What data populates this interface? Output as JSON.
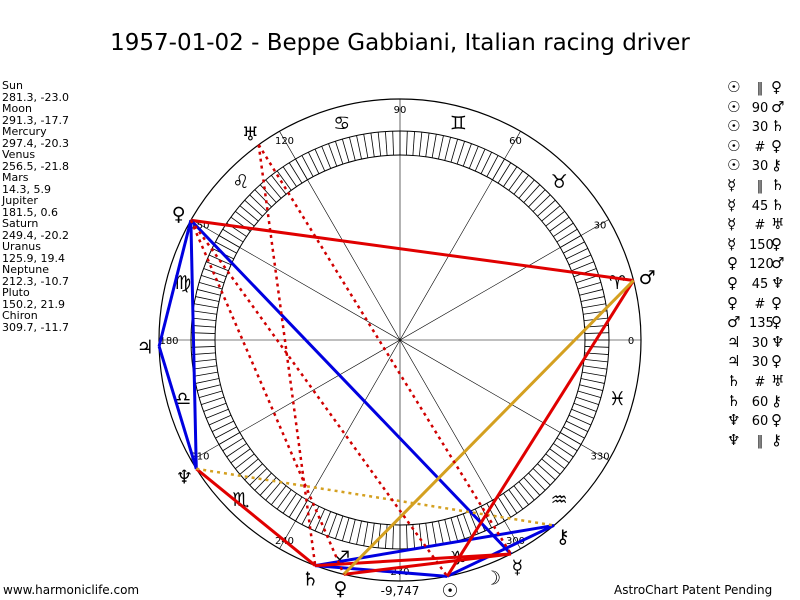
{
  "title": "1957-01-02 - Beppe Gabbiani, Italian racing driver",
  "planets": [
    {
      "name": "Sun",
      "coords": "281.3, -23.0"
    },
    {
      "name": "Moon",
      "coords": "291.3, -17.7"
    },
    {
      "name": "Mercury",
      "coords": "297.4, -20.3"
    },
    {
      "name": "Venus",
      "coords": "256.5, -21.8"
    },
    {
      "name": "Mars",
      "coords": "14.3, 5.9"
    },
    {
      "name": "Jupiter",
      "coords": "181.5, 0.6"
    },
    {
      "name": "Saturn",
      "coords": "249.4, -20.2"
    },
    {
      "name": "Uranus",
      "coords": "125.9, 19.4"
    },
    {
      "name": "Neptune",
      "coords": "212.3, -10.7"
    },
    {
      "name": "Pluto",
      "coords": "150.2, 21.9"
    },
    {
      "name": "Chiron",
      "coords": "309.7, -11.7"
    }
  ],
  "aspects_list": [
    {
      "p1": "☉",
      "sym": "‖",
      "p2": "♀"
    },
    {
      "p1": "☉",
      "sym": "90",
      "p2": "♂"
    },
    {
      "p1": "☉",
      "sym": "30",
      "p2": "♄"
    },
    {
      "p1": "☉",
      "sym": "#",
      "p2": "♀"
    },
    {
      "p1": "☉",
      "sym": "30",
      "p2": "⚷"
    },
    {
      "p1": "☿",
      "sym": "‖",
      "p2": "♄"
    },
    {
      "p1": "☿",
      "sym": "45",
      "p2": "♄"
    },
    {
      "p1": "☿",
      "sym": "#",
      "p2": "♅"
    },
    {
      "p1": "☿",
      "sym": "150",
      "p2": "♀"
    },
    {
      "p1": "♀",
      "sym": "120",
      "p2": "♂"
    },
    {
      "p1": "♀",
      "sym": "45",
      "p2": "♆"
    },
    {
      "p1": "♀",
      "sym": "#",
      "p2": "♀"
    },
    {
      "p1": "♂",
      "sym": "135",
      "p2": "♀"
    },
    {
      "p1": "♃",
      "sym": "30",
      "p2": "♆"
    },
    {
      "p1": "♃",
      "sym": "30",
      "p2": "♀"
    },
    {
      "p1": "♄",
      "sym": "#",
      "p2": "♅"
    },
    {
      "p1": "♄",
      "sym": "60",
      "p2": "⚷"
    },
    {
      "p1": "♆",
      "sym": "60",
      "p2": "♀"
    },
    {
      "p1": "♆",
      "sym": "‖",
      "p2": "⚷"
    }
  ],
  "footer_left": "www.harmoniclife.com",
  "footer_right": "AstroChart Patent Pending",
  "chart_data": {
    "type": "astrological-wheel",
    "degree_labels": [
      "0",
      "30",
      "60",
      "90",
      "120",
      "150",
      "180",
      "210",
      "240",
      "270",
      "300",
      "330"
    ],
    "center_value": "-9,747",
    "zodiac_signs": [
      "♈",
      "♉",
      "♊",
      "♋",
      "♌",
      "♍",
      "♎",
      "♏",
      "♐",
      "♑",
      "♒",
      "♓"
    ],
    "bodies": [
      {
        "name": "Sun",
        "glyph": "☉",
        "longitude": 281.3
      },
      {
        "name": "Moon",
        "glyph": "☽",
        "longitude": 291.3
      },
      {
        "name": "Mercury",
        "glyph": "☿",
        "longitude": 297.4
      },
      {
        "name": "Venus",
        "glyph": "♀",
        "longitude": 256.5
      },
      {
        "name": "Mars",
        "glyph": "♂",
        "longitude": 14.3
      },
      {
        "name": "Jupiter",
        "glyph": "♃",
        "longitude": 181.5
      },
      {
        "name": "Saturn",
        "glyph": "♄",
        "longitude": 249.4
      },
      {
        "name": "Uranus",
        "glyph": "♅",
        "longitude": 125.9
      },
      {
        "name": "Neptune",
        "glyph": "♆",
        "longitude": 212.3
      },
      {
        "name": "Pluto",
        "glyph": "♀",
        "longitude": 150.2
      },
      {
        "name": "Chiron",
        "glyph": "⚷",
        "longitude": 309.7
      }
    ],
    "aspect_lines": [
      {
        "from": "Pluto",
        "to": "Mars",
        "color": "#e00000",
        "style": "solid"
      },
      {
        "from": "Pluto",
        "to": "Jupiter",
        "color": "#0000e0",
        "style": "solid"
      },
      {
        "from": "Jupiter",
        "to": "Neptune",
        "color": "#0000e0",
        "style": "solid"
      },
      {
        "from": "Pluto",
        "to": "Neptune",
        "color": "#0000e0",
        "style": "solid"
      },
      {
        "from": "Pluto",
        "to": "Mercury",
        "color": "#0000e0",
        "style": "solid"
      },
      {
        "from": "Neptune",
        "to": "Saturn",
        "color": "#e00000",
        "style": "solid"
      },
      {
        "from": "Saturn",
        "to": "Sun",
        "color": "#0000e0",
        "style": "solid"
      },
      {
        "from": "Saturn",
        "to": "Chiron",
        "color": "#0000e0",
        "style": "solid"
      },
      {
        "from": "Sun",
        "to": "Chiron",
        "color": "#0000e0",
        "style": "solid"
      },
      {
        "from": "Venus",
        "to": "Mercury",
        "color": "#e00000",
        "style": "solid"
      },
      {
        "from": "Saturn",
        "to": "Mercury",
        "color": "#e00000",
        "style": "solid"
      },
      {
        "from": "Sun",
        "to": "Mars",
        "color": "#e00000",
        "style": "solid"
      },
      {
        "from": "Venus",
        "to": "Mars",
        "color": "#d4a020",
        "style": "solid"
      },
      {
        "from": "Neptune",
        "to": "Chiron",
        "color": "#d4a020",
        "style": "dotted"
      },
      {
        "from": "Uranus",
        "to": "Saturn",
        "color": "#d00000",
        "style": "dotted"
      },
      {
        "from": "Uranus",
        "to": "Mercury",
        "color": "#d00000",
        "style": "dotted"
      },
      {
        "from": "Pluto",
        "to": "Sun",
        "color": "#d00000",
        "style": "dotted"
      },
      {
        "from": "Pluto",
        "to": "Venus",
        "color": "#d00000",
        "style": "dotted"
      }
    ]
  }
}
